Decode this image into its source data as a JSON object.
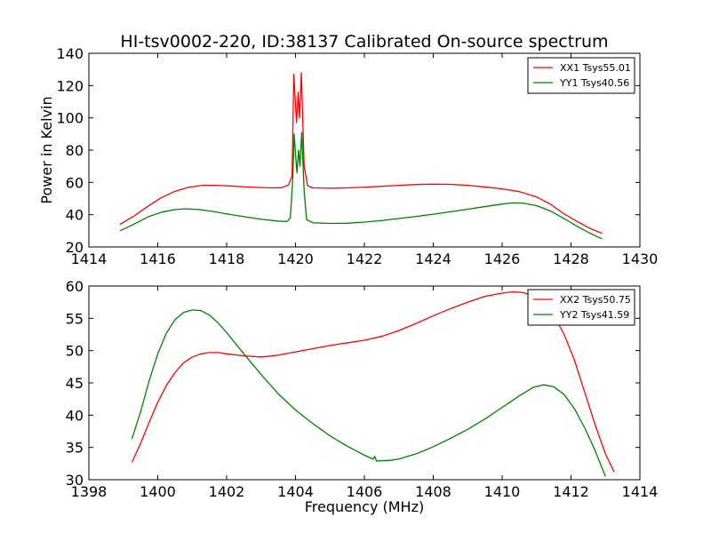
{
  "title": "HI-tsv0002-220, ID:38137 Calibrated On-source spectrum",
  "chart_data": [
    {
      "type": "line",
      "title": "HI-tsv0002-220, ID:38137 Calibrated On-source spectrum",
      "xlabel": "",
      "ylabel": "Power in Kelvin",
      "xlim": [
        1414,
        1430
      ],
      "ylim": [
        20,
        140
      ],
      "xticks": [
        "1414",
        "1416",
        "1418",
        "1420",
        "1422",
        "1424",
        "1426",
        "1428",
        "1430"
      ],
      "yticks": [
        "20",
        "40",
        "60",
        "80",
        "100",
        "120",
        "140"
      ],
      "grid": false,
      "legend_position": "top-right",
      "series": [
        {
          "name": "XX1 Tsys55.01",
          "color": "#ff0000",
          "points": [
            [
              1414.9,
              34
            ],
            [
              1415.3,
              39
            ],
            [
              1415.7,
              45
            ],
            [
              1416.1,
              50.5
            ],
            [
              1416.5,
              54.5
            ],
            [
              1416.9,
              57
            ],
            [
              1417.3,
              58.2
            ],
            [
              1417.7,
              58.2
            ],
            [
              1418.1,
              57.8
            ],
            [
              1418.5,
              57.3
            ],
            [
              1418.9,
              56.9
            ],
            [
              1419.3,
              56.6
            ],
            [
              1419.6,
              56.7
            ],
            [
              1419.8,
              58.5
            ],
            [
              1419.9,
              64
            ],
            [
              1419.95,
              127
            ],
            [
              1420.03,
              97
            ],
            [
              1420.08,
              116
            ],
            [
              1420.12,
              100
            ],
            [
              1420.17,
              128
            ],
            [
              1420.25,
              70
            ],
            [
              1420.35,
              58
            ],
            [
              1420.5,
              56.6
            ],
            [
              1421,
              56.4
            ],
            [
              1421.5,
              56.6
            ],
            [
              1422,
              57
            ],
            [
              1422.5,
              57.6
            ],
            [
              1423,
              58.2
            ],
            [
              1423.5,
              58.7
            ],
            [
              1424,
              58.9
            ],
            [
              1424.5,
              58.8
            ],
            [
              1425,
              58.2
            ],
            [
              1425.5,
              57.2
            ],
            [
              1426,
              56
            ],
            [
              1426.5,
              54.3
            ],
            [
              1427,
              51
            ],
            [
              1427.4,
              46.5
            ],
            [
              1427.8,
              40.5
            ],
            [
              1428.2,
              35.5
            ],
            [
              1428.6,
              31
            ],
            [
              1428.9,
              28.5
            ]
          ]
        },
        {
          "name": "YY1 Tsys40.56",
          "color": "#008000",
          "points": [
            [
              1414.9,
              30
            ],
            [
              1415.3,
              34
            ],
            [
              1415.7,
              38.5
            ],
            [
              1416.1,
              41.5
            ],
            [
              1416.5,
              43.2
            ],
            [
              1416.8,
              43.6
            ],
            [
              1417.2,
              43.2
            ],
            [
              1417.6,
              42
            ],
            [
              1418,
              40.5
            ],
            [
              1418.5,
              38.8
            ],
            [
              1419,
              37.2
            ],
            [
              1419.5,
              36
            ],
            [
              1419.75,
              35.8
            ],
            [
              1419.85,
              38
            ],
            [
              1419.92,
              62
            ],
            [
              1419.96,
              90
            ],
            [
              1420.04,
              66
            ],
            [
              1420.09,
              80
            ],
            [
              1420.13,
              70
            ],
            [
              1420.18,
              91
            ],
            [
              1420.25,
              55
            ],
            [
              1420.32,
              37
            ],
            [
              1420.5,
              35
            ],
            [
              1421,
              34.6
            ],
            [
              1421.5,
              34.7
            ],
            [
              1422,
              35.4
            ],
            [
              1422.5,
              36.4
            ],
            [
              1423,
              37.6
            ],
            [
              1423.5,
              38.9
            ],
            [
              1424,
              40.3
            ],
            [
              1424.5,
              41.8
            ],
            [
              1425,
              43.4
            ],
            [
              1425.5,
              45
            ],
            [
              1426,
              46.6
            ],
            [
              1426.3,
              47.3
            ],
            [
              1426.6,
              47.2
            ],
            [
              1427,
              45.6
            ],
            [
              1427.4,
              42.3
            ],
            [
              1427.8,
              37.6
            ],
            [
              1428.2,
              32.5
            ],
            [
              1428.6,
              28
            ],
            [
              1428.9,
              25
            ]
          ]
        }
      ]
    },
    {
      "type": "line",
      "title": "",
      "xlabel": "Frequency (MHz)",
      "ylabel": "",
      "xlim": [
        1398,
        1414
      ],
      "ylim": [
        30,
        60
      ],
      "xticks": [
        "1398",
        "1400",
        "1402",
        "1404",
        "1406",
        "1408",
        "1410",
        "1412",
        "1414"
      ],
      "yticks": [
        "30",
        "35",
        "40",
        "45",
        "50",
        "55",
        "60"
      ],
      "grid": false,
      "legend_position": "top-right",
      "series": [
        {
          "name": "XX2 Tsys50.75",
          "color": "#ff0000",
          "points": [
            [
              1399.25,
              32.7
            ],
            [
              1399.5,
              35.6
            ],
            [
              1399.75,
              38.9
            ],
            [
              1400,
              42
            ],
            [
              1400.25,
              44.6
            ],
            [
              1400.5,
              46.6
            ],
            [
              1400.75,
              48.1
            ],
            [
              1401,
              49
            ],
            [
              1401.25,
              49.5
            ],
            [
              1401.5,
              49.7
            ],
            [
              1401.75,
              49.7
            ],
            [
              1402,
              49.5
            ],
            [
              1402.5,
              49.2
            ],
            [
              1403,
              49
            ],
            [
              1403.5,
              49.3
            ],
            [
              1404,
              49.8
            ],
            [
              1404.5,
              50.3
            ],
            [
              1405,
              50.8
            ],
            [
              1405.5,
              51.2
            ],
            [
              1406,
              51.6
            ],
            [
              1406.5,
              52.2
            ],
            [
              1407,
              53.1
            ],
            [
              1407.5,
              54.2
            ],
            [
              1408,
              55.4
            ],
            [
              1408.5,
              56.5
            ],
            [
              1409,
              57.5
            ],
            [
              1409.5,
              58.4
            ],
            [
              1410,
              58.9
            ],
            [
              1410.3,
              59.1
            ],
            [
              1410.6,
              59
            ],
            [
              1410.9,
              58.5
            ],
            [
              1411.2,
              57.2
            ],
            [
              1411.5,
              55.5
            ],
            [
              1411.8,
              52.5
            ],
            [
              1412.1,
              48.5
            ],
            [
              1412.4,
              43.5
            ],
            [
              1412.7,
              38.5
            ],
            [
              1413,
              34
            ],
            [
              1413.25,
              31.2
            ]
          ]
        },
        {
          "name": "YY2 Tsys41.59",
          "color": "#008000",
          "points": [
            [
              1399.25,
              36.3
            ],
            [
              1399.5,
              40.5
            ],
            [
              1399.75,
              45.3
            ],
            [
              1400,
              49.5
            ],
            [
              1400.25,
              52.7
            ],
            [
              1400.5,
              54.8
            ],
            [
              1400.75,
              55.9
            ],
            [
              1401,
              56.3
            ],
            [
              1401.25,
              56.2
            ],
            [
              1401.5,
              55.5
            ],
            [
              1401.75,
              54.3
            ],
            [
              1402,
              52.8
            ],
            [
              1402.5,
              49.5
            ],
            [
              1403,
              46.3
            ],
            [
              1403.5,
              43.3
            ],
            [
              1404,
              40.8
            ],
            [
              1404.5,
              38.7
            ],
            [
              1405,
              36.8
            ],
            [
              1405.5,
              35.2
            ],
            [
              1406,
              33.8
            ],
            [
              1406.25,
              33.2
            ],
            [
              1406.3,
              33.6
            ],
            [
              1406.35,
              32.9
            ],
            [
              1406.75,
              33
            ],
            [
              1407,
              33.2
            ],
            [
              1407.5,
              34
            ],
            [
              1408,
              35.1
            ],
            [
              1408.5,
              36.4
            ],
            [
              1409,
              37.8
            ],
            [
              1409.5,
              39.4
            ],
            [
              1410,
              41.2
            ],
            [
              1410.5,
              43
            ],
            [
              1410.9,
              44.3
            ],
            [
              1411.2,
              44.7
            ],
            [
              1411.5,
              44.4
            ],
            [
              1411.8,
              43.2
            ],
            [
              1412.1,
              41
            ],
            [
              1412.4,
              38
            ],
            [
              1412.7,
              34.5
            ],
            [
              1413,
              30.5
            ]
          ]
        }
      ]
    }
  ]
}
